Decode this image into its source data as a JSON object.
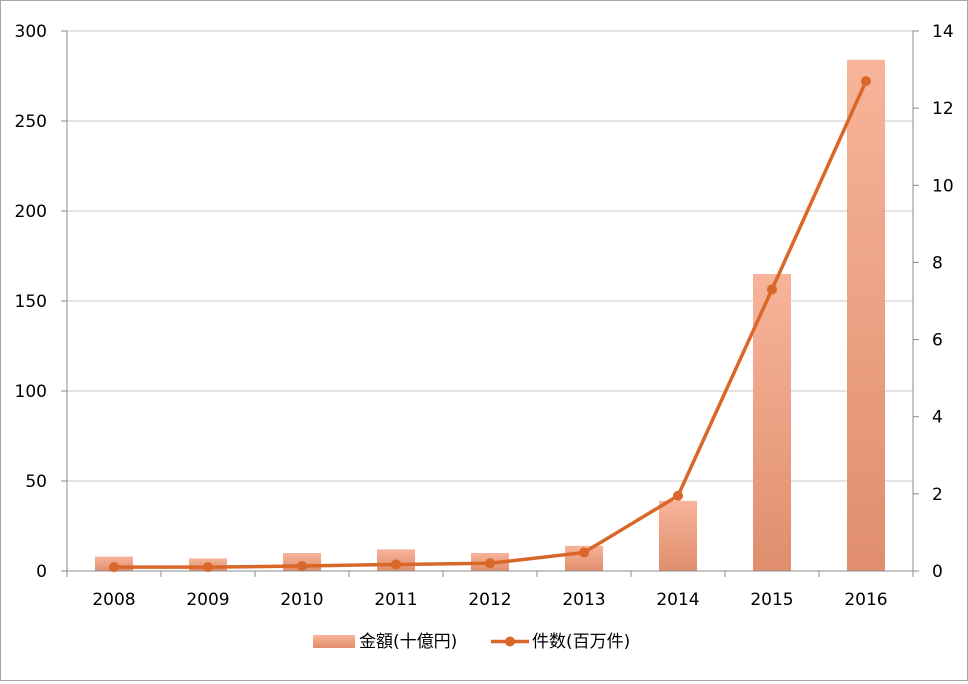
{
  "chart_data": {
    "type": "bar",
    "categories": [
      "2008",
      "2009",
      "2010",
      "2011",
      "2012",
      "2013",
      "2014",
      "2015",
      "2016"
    ],
    "series": [
      {
        "name": "金額(十億円)",
        "type": "bar",
        "axis": "left",
        "values": [
          8,
          7,
          10,
          12,
          10,
          14,
          39,
          165,
          284
        ]
      },
      {
        "name": "件数(百万件)",
        "type": "line",
        "axis": "right",
        "values": [
          0.1,
          0.1,
          0.13,
          0.17,
          0.2,
          0.48,
          1.95,
          7.3,
          12.7
        ]
      }
    ],
    "yleft": {
      "min": 0,
      "max": 300,
      "ticks": [
        0,
        50,
        100,
        150,
        200,
        250,
        300
      ]
    },
    "yright": {
      "min": 0,
      "max": 14,
      "ticks": [
        0,
        2,
        4,
        6,
        8,
        10,
        12,
        14
      ]
    },
    "grid": true,
    "legend_position": "bottom",
    "colors": {
      "bar_top": "#f7b49a",
      "bar_bottom": "#e08e6d",
      "line": "#d9672a",
      "grid": "#c8c8c8",
      "axis": "#8c8c8c"
    }
  }
}
